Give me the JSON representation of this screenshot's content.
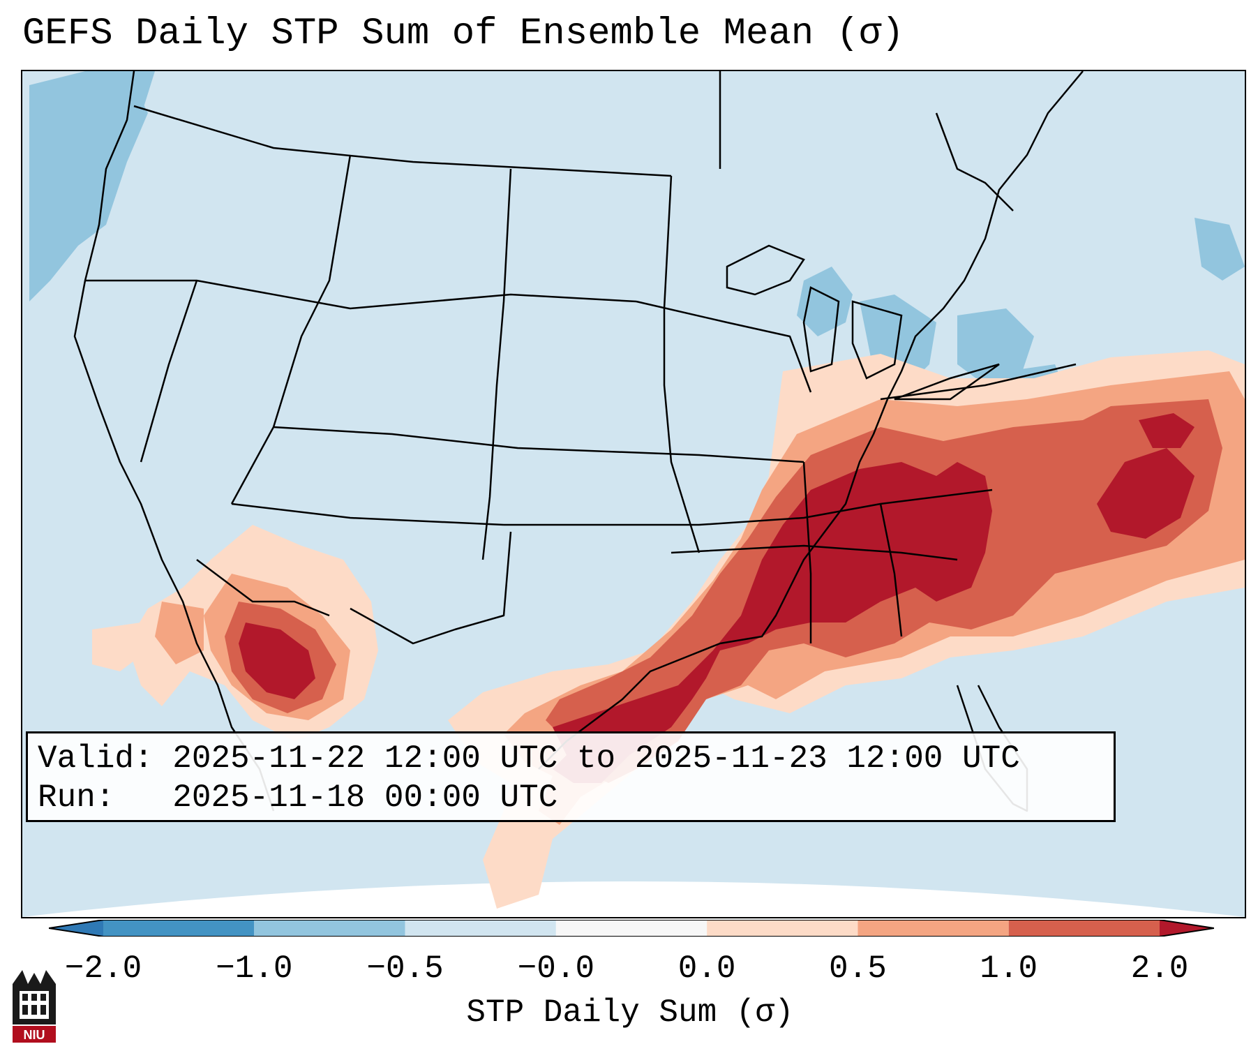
{
  "title": "GEFS Daily STP Sum of Ensemble Mean (σ)",
  "info": {
    "valid_line": "Valid: 2025-11-22 12:00 UTC to 2025-11-23 12:00 UTC",
    "run_line": "Run:   2025-11-18 00:00 UTC"
  },
  "colorbar": {
    "label": "STP Daily Sum (σ)",
    "ticks": [
      "−2.0",
      "−1.0",
      "−0.5",
      "−0.0",
      "0.0",
      "0.5",
      "1.0",
      "2.0"
    ],
    "bins": [
      {
        "range": [
          -3.0,
          -2.0
        ],
        "color": "#2f79b5"
      },
      {
        "range": [
          -2.0,
          -1.0
        ],
        "color": "#4393c3"
      },
      {
        "range": [
          -1.0,
          -0.5
        ],
        "color": "#92c5de"
      },
      {
        "range": [
          -0.5,
          -0.0
        ],
        "color": "#d1e5f0"
      },
      {
        "range": [
          -0.0,
          0.0
        ],
        "color": "#f7f7f7"
      },
      {
        "range": [
          0.0,
          0.5
        ],
        "color": "#fddbc7"
      },
      {
        "range": [
          0.5,
          1.0
        ],
        "color": "#f4a582"
      },
      {
        "range": [
          1.0,
          2.0
        ],
        "color": "#d6604d"
      },
      {
        "range": [
          2.0,
          3.0
        ],
        "color": "#b2182b"
      }
    ]
  },
  "map": {
    "background_color": "#d1e5f0",
    "boundary_color": "#000000",
    "region": "Contiguous United States",
    "negative_areas": [
      "Pacific Northwest coast",
      "Great Lakes",
      "New York",
      "Gulf of Maine"
    ],
    "positive_areas": [
      "Mississippi",
      "Alabama",
      "Georgia",
      "Tennessee",
      "Kentucky",
      "Texas Gulf Coast",
      "Carolinas",
      "Western Atlantic",
      "Sonora / Arizona"
    ]
  },
  "logo": {
    "text": "NIU",
    "color": "#b10e1e"
  }
}
